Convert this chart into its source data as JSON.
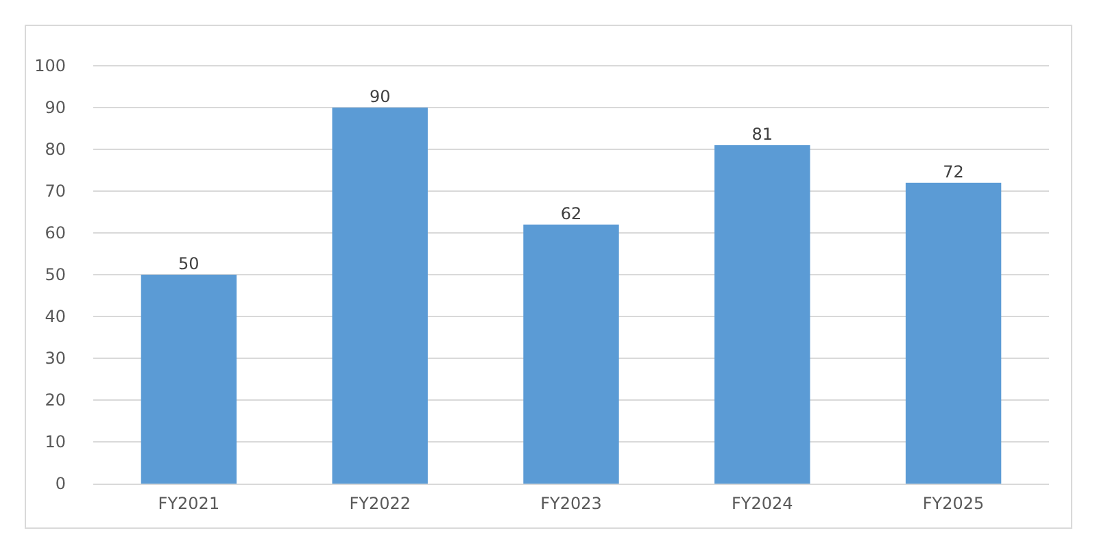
{
  "chart_data": {
    "type": "bar",
    "categories": [
      "FY2021",
      "FY2022",
      "FY2023",
      "FY2024",
      "FY2025"
    ],
    "values": [
      50,
      90,
      62,
      81,
      72
    ],
    "color": "#5b9bd5",
    "ylim": [
      0,
      100
    ],
    "yticks": [
      0,
      10,
      20,
      30,
      40,
      50,
      60,
      70,
      80,
      90,
      100
    ],
    "grid": "y",
    "data_labels": true
  }
}
